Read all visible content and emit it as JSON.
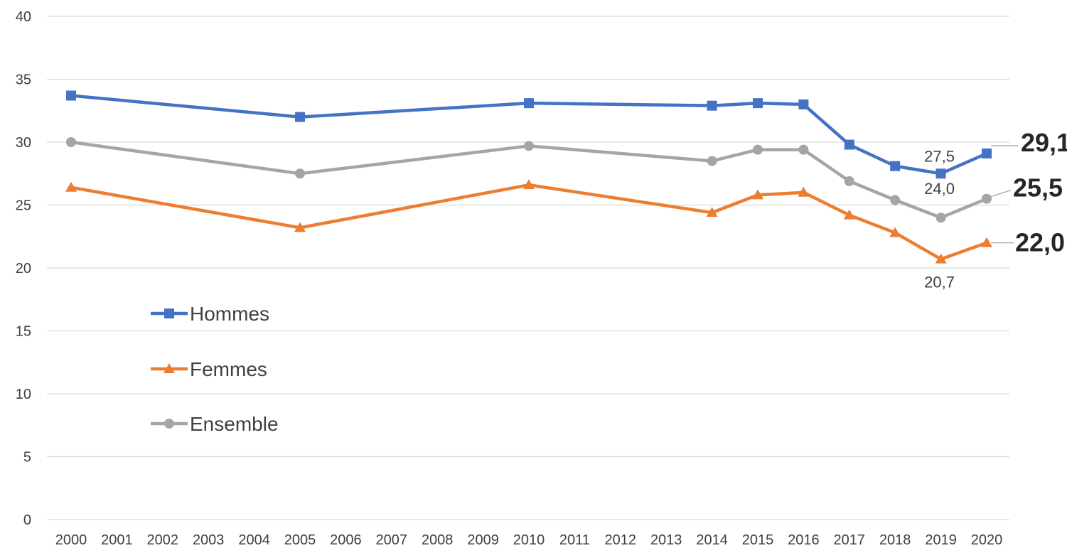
{
  "chart_data": {
    "type": "line",
    "x": [
      2000,
      2001,
      2002,
      2003,
      2004,
      2005,
      2006,
      2007,
      2008,
      2009,
      2010,
      2011,
      2012,
      2013,
      2014,
      2015,
      2016,
      2017,
      2018,
      2019,
      2020
    ],
    "ylim": [
      0,
      40
    ],
    "yticks": [
      0,
      5,
      10,
      15,
      20,
      25,
      30,
      35,
      40
    ],
    "grid": true,
    "legend_position": "left",
    "title": "",
    "xlabel": "",
    "ylabel": "",
    "series": [
      {
        "key": "hommes",
        "name": "Hommes",
        "color": "#4472C4",
        "marker": "square",
        "points": [
          [
            2000,
            33.7
          ],
          [
            2005,
            32.0
          ],
          [
            2010,
            33.1
          ],
          [
            2014,
            32.9
          ],
          [
            2015,
            33.1
          ],
          [
            2016,
            33.0
          ],
          [
            2017,
            29.8
          ],
          [
            2018,
            28.1
          ],
          [
            2019,
            27.5
          ],
          [
            2020,
            29.1
          ]
        ]
      },
      {
        "key": "femmes",
        "name": "Femmes",
        "color": "#ED7D31",
        "marker": "triangle",
        "points": [
          [
            2000,
            26.4
          ],
          [
            2005,
            23.2
          ],
          [
            2010,
            26.6
          ],
          [
            2014,
            24.4
          ],
          [
            2015,
            25.8
          ],
          [
            2016,
            26.0
          ],
          [
            2017,
            24.2
          ],
          [
            2018,
            22.8
          ],
          [
            2019,
            20.7
          ],
          [
            2020,
            22.0
          ]
        ]
      },
      {
        "key": "ensemble",
        "name": "Ensemble",
        "color": "#A5A5A5",
        "marker": "circle",
        "points": [
          [
            2000,
            30.0
          ],
          [
            2005,
            27.5
          ],
          [
            2010,
            29.7
          ],
          [
            2014,
            28.5
          ],
          [
            2015,
            29.4
          ],
          [
            2016,
            29.4
          ],
          [
            2017,
            26.9
          ],
          [
            2018,
            25.4
          ],
          [
            2019,
            24.0
          ],
          [
            2020,
            25.5
          ]
        ]
      }
    ],
    "annotations": [
      {
        "key": "h2019",
        "series": "hommes",
        "x": 2019,
        "text": "27,5",
        "bold": false
      },
      {
        "key": "e2019",
        "series": "ensemble",
        "x": 2019,
        "text": "24,0",
        "bold": false
      },
      {
        "key": "f2019",
        "series": "femmes",
        "x": 2019,
        "text": "20,7",
        "bold": false
      },
      {
        "key": "h2020",
        "series": "hommes",
        "x": 2020,
        "text": "29,1",
        "bold": true
      },
      {
        "key": "e2020",
        "series": "ensemble",
        "x": 2020,
        "text": "25,5",
        "bold": true
      },
      {
        "key": "f2020",
        "series": "femmes",
        "x": 2020,
        "text": "22,0",
        "bold": true
      }
    ]
  }
}
